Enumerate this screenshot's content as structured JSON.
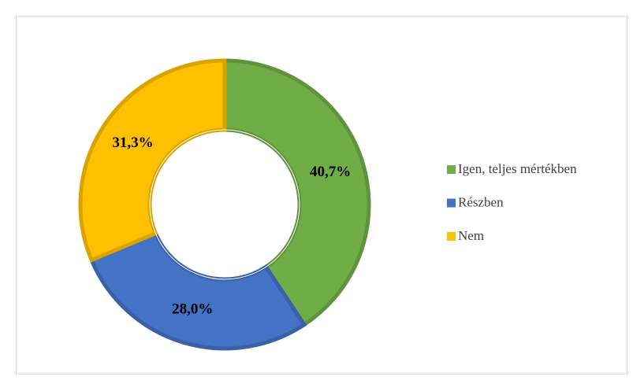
{
  "chart_data": {
    "type": "pie",
    "categories": [
      "Igen, teljes mértékben",
      "Részben",
      "Nem"
    ],
    "values": [
      40.7,
      28.0,
      31.3
    ],
    "value_labels": [
      "40,7%",
      "28,0%",
      "31,3%"
    ],
    "colors": [
      "#70ad47",
      "#4472c4",
      "#ffc000"
    ],
    "donut": true,
    "legend": "right"
  }
}
